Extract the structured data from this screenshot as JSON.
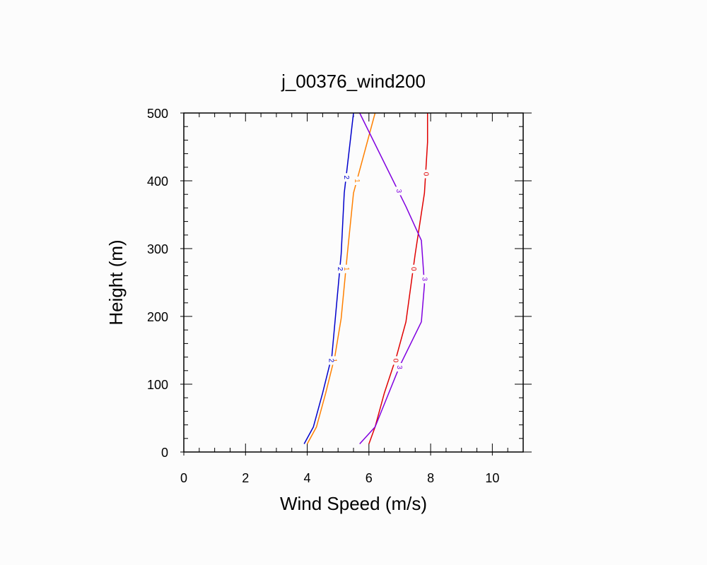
{
  "chart_data": {
    "type": "line",
    "title": "j_00376_wind200",
    "xlabel": "Wind Speed (m/s)",
    "ylabel": "Height (m)",
    "xlim": [
      0,
      11
    ],
    "ylim": [
      0,
      500
    ],
    "xticks": [
      "0",
      "2",
      "4",
      "6",
      "8",
      "10"
    ],
    "yticks": [
      "0",
      "100",
      "200",
      "300",
      "400",
      "500"
    ],
    "grid": false,
    "series": [
      {
        "name": "0",
        "color": "#e00000",
        "points": [
          [
            6.0,
            12
          ],
          [
            6.2,
            37
          ],
          [
            6.5,
            87
          ],
          [
            6.9,
            142
          ],
          [
            7.2,
            192
          ],
          [
            7.5,
            292
          ],
          [
            7.8,
            382
          ],
          [
            7.9,
            457
          ],
          [
            7.9,
            500
          ]
        ],
        "label_heights": [
          410,
          270,
          135
        ]
      },
      {
        "name": "1",
        "color": "#ff8000",
        "points": [
          [
            4.0,
            12
          ],
          [
            4.3,
            37
          ],
          [
            4.6,
            87
          ],
          [
            4.9,
            142
          ],
          [
            5.1,
            197
          ],
          [
            5.3,
            292
          ],
          [
            5.5,
            382
          ],
          [
            6.2,
            500
          ]
        ],
        "label_heights": [
          400,
          270,
          135
        ]
      },
      {
        "name": "2",
        "color": "#0000cc",
        "points": [
          [
            3.9,
            12
          ],
          [
            4.2,
            37
          ],
          [
            4.5,
            87
          ],
          [
            4.8,
            142
          ],
          [
            4.9,
            192
          ],
          [
            5.1,
            292
          ],
          [
            5.2,
            382
          ],
          [
            5.5,
            500
          ]
        ],
        "label_heights": [
          405,
          270,
          135
        ]
      },
      {
        "name": "3",
        "color": "#8000e0",
        "points": [
          [
            5.7,
            12
          ],
          [
            6.2,
            37
          ],
          [
            6.6,
            82
          ],
          [
            7.0,
            127
          ],
          [
            7.7,
            192
          ],
          [
            7.8,
            247
          ],
          [
            7.7,
            312
          ],
          [
            7.2,
            362
          ],
          [
            5.7,
            500
          ]
        ],
        "label_heights": [
          385,
          255,
          125
        ]
      }
    ]
  }
}
